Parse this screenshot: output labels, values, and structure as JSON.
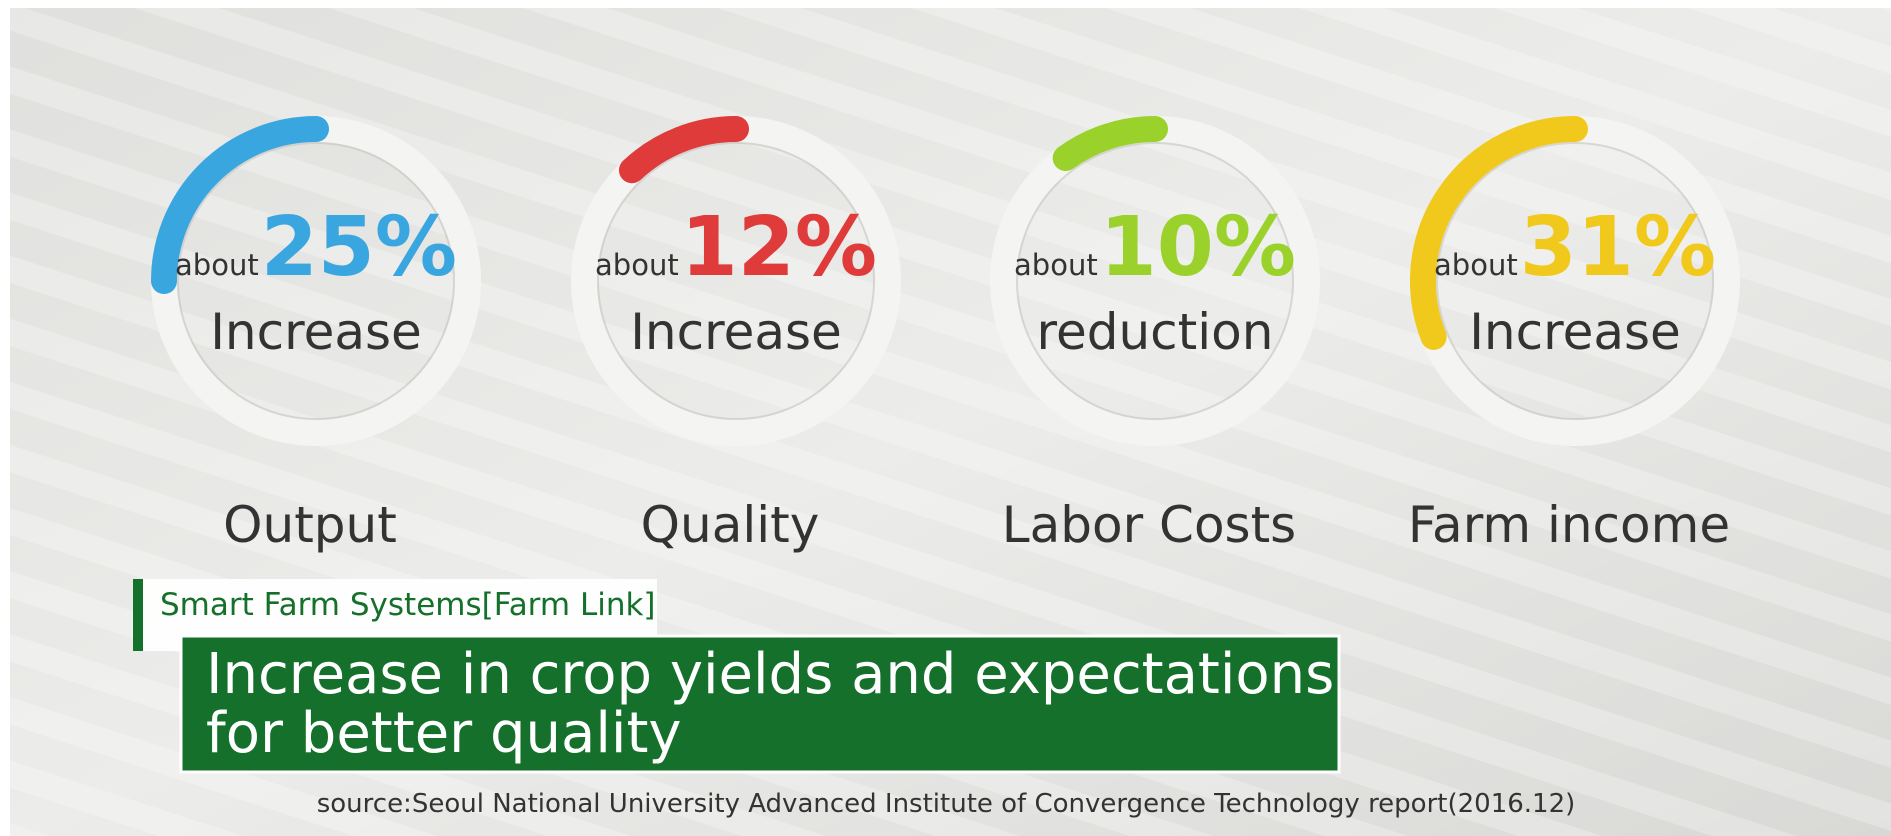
{
  "chart_data": {
    "type": "gauge",
    "categories": [
      "Output",
      "Quality",
      "Labor Costs",
      "Farm income"
    ],
    "values": [
      25,
      12,
      10,
      31
    ],
    "value_labels": [
      "25%",
      "12%",
      "10%",
      "31%"
    ],
    "prefixes": [
      "about",
      "about",
      "about",
      "about"
    ],
    "captions": [
      "Increase",
      "Increase",
      "reduction",
      "Increase"
    ],
    "colors": [
      "#3aa6e0",
      "#e03b3b",
      "#9ad12b",
      "#f1c81c"
    ],
    "ylim": [
      0,
      100
    ],
    "tag": "Smart Farm Systems[Farm Link]",
    "title_lines": [
      "Increase in crop yields and expectations",
      "for better quality"
    ],
    "source": "source:Seoul National University Advanced Institute of Convergence Technology report(2016.12)"
  }
}
